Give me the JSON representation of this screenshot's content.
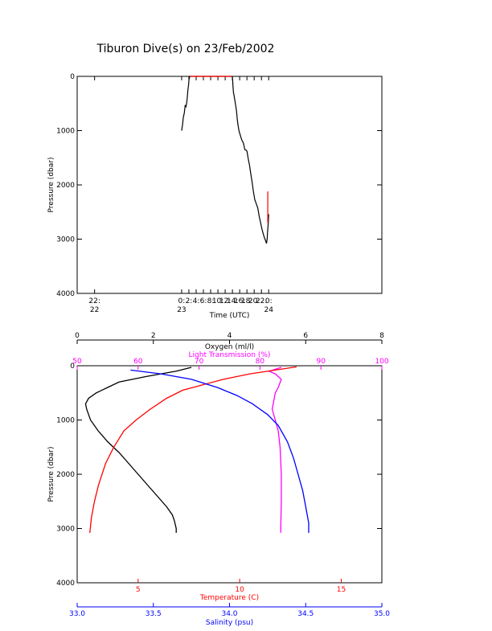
{
  "page": {
    "title": "Tiburon Dive(s) on 23/Feb/2002"
  },
  "chart_data": [
    {
      "type": "line",
      "id": "dive-profile",
      "xlabel": "Time (UTC)",
      "ylabel": "Pressure (dbar)",
      "xlim": [
        21.8,
        25.3
      ],
      "ylim": [
        4000,
        0
      ],
      "x_ticks": [
        {
          "value": 22,
          "line1": "22:",
          "line2": "22"
        },
        {
          "value": 23,
          "line1": "0:",
          "line2": "23"
        },
        {
          "value": 23.0833,
          "line1": "2:",
          "line2": ""
        },
        {
          "value": 23.1667,
          "line1": "4:",
          "line2": ""
        },
        {
          "value": 23.25,
          "line1": "6:",
          "line2": ""
        },
        {
          "value": 23.3333,
          "line1": "8:",
          "line2": ""
        },
        {
          "value": 23.4167,
          "line1": "10:",
          "line2": ""
        },
        {
          "value": 23.5,
          "line1": "12:",
          "line2": ""
        },
        {
          "value": 23.5833,
          "line1": "14:",
          "line2": ""
        },
        {
          "value": 23.6667,
          "line1": "16:",
          "line2": ""
        },
        {
          "value": 23.75,
          "line1": "18:",
          "line2": ""
        },
        {
          "value": 23.8333,
          "line1": "20:",
          "line2": ""
        },
        {
          "value": 23.9167,
          "line1": "22:",
          "line2": ""
        },
        {
          "value": 24,
          "line1": "0:",
          "line2": "24"
        }
      ],
      "y_ticks": [
        0,
        1000,
        2000,
        3000,
        4000
      ],
      "series": [
        {
          "color": "#000000",
          "points": [
            [
              23.0,
              1000
            ],
            [
              23.01,
              900
            ],
            [
              23.02,
              750
            ],
            [
              23.03,
              680
            ],
            [
              23.04,
              540
            ],
            [
              23.05,
              560
            ],
            [
              23.06,
              470
            ],
            [
              23.065,
              380
            ],
            [
              23.072,
              260
            ],
            [
              23.08,
              150
            ],
            [
              23.085,
              60
            ],
            [
              23.09,
              20
            ],
            [
              23.095,
              0
            ],
            [
              23.58,
              0
            ],
            [
              23.585,
              50
            ],
            [
              23.59,
              180
            ],
            [
              23.595,
              300
            ],
            [
              23.6,
              330
            ],
            [
              23.61,
              430
            ],
            [
              23.62,
              530
            ],
            [
              23.63,
              640
            ],
            [
              23.64,
              800
            ],
            [
              23.65,
              920
            ],
            [
              23.66,
              1010
            ],
            [
              23.675,
              1090
            ],
            [
              23.69,
              1170
            ],
            [
              23.71,
              1230
            ],
            [
              23.725,
              1350
            ],
            [
              23.74,
              1360
            ],
            [
              23.75,
              1380
            ],
            [
              23.765,
              1520
            ],
            [
              23.78,
              1640
            ],
            [
              23.795,
              1800
            ],
            [
              23.81,
              1960
            ],
            [
              23.825,
              2130
            ],
            [
              23.84,
              2270
            ],
            [
              23.86,
              2360
            ],
            [
              23.875,
              2430
            ],
            [
              23.89,
              2570
            ],
            [
              23.905,
              2680
            ],
            [
              23.92,
              2800
            ],
            [
              23.935,
              2890
            ],
            [
              23.95,
              2970
            ],
            [
              23.965,
              3030
            ],
            [
              23.975,
              3080
            ],
            [
              23.982,
              3000
            ],
            [
              23.988,
              2850
            ],
            [
              23.995,
              2700
            ],
            [
              24.0,
              2540
            ]
          ]
        },
        {
          "color": "#ff0000",
          "points": [
            [
              23.095,
              0
            ],
            [
              23.58,
              0
            ]
          ]
        },
        {
          "color": "#ff0000",
          "points": [
            [
              23.99,
              2120
            ],
            [
              23.99,
              2700
            ]
          ]
        }
      ]
    },
    {
      "type": "line",
      "id": "cast-profile",
      "ylabel": "Pressure (dbar)",
      "ylim": [
        4000,
        0
      ],
      "y_ticks": [
        0,
        1000,
        2000,
        3000,
        4000
      ],
      "axes": {
        "oxygen": {
          "label": "Oxygen (ml/l)",
          "lim": [
            0,
            8
          ],
          "ticks": [
            0,
            2,
            4,
            6,
            8
          ],
          "color": "#000000",
          "position": "top-outer"
        },
        "transmission": {
          "label": "Light Transmission (%)",
          "lim": [
            50,
            100
          ],
          "ticks": [
            50,
            60,
            70,
            80,
            90,
            100
          ],
          "color": "#ff00ff",
          "position": "top-inner"
        },
        "temperature": {
          "label": "Temperature (C)",
          "lim": [
            2,
            17
          ],
          "ticks": [
            5,
            10,
            15
          ],
          "color": "#ff0000",
          "position": "bottom-inner"
        },
        "salinity": {
          "label": "Salinity (psu)",
          "lim": [
            33.0,
            35.0
          ],
          "ticks": [
            "33.0",
            "33.5",
            "34.0",
            "34.5",
            "35.0"
          ],
          "color": "#0000ff",
          "position": "bottom-outer"
        }
      },
      "series": [
        {
          "name": "Oxygen (ml/l)",
          "axis": "oxygen",
          "color": "#000000",
          "points": [
            [
              3.0,
              30
            ],
            [
              2.6,
              100
            ],
            [
              1.8,
              200
            ],
            [
              1.1,
              300
            ],
            [
              0.8,
              400
            ],
            [
              0.5,
              500
            ],
            [
              0.3,
              600
            ],
            [
              0.22,
              700
            ],
            [
              0.25,
              800
            ],
            [
              0.35,
              1000
            ],
            [
              0.55,
              1200
            ],
            [
              0.8,
              1400
            ],
            [
              1.1,
              1600
            ],
            [
              1.35,
              1800
            ],
            [
              1.6,
              2000
            ],
            [
              1.85,
              2200
            ],
            [
              2.1,
              2400
            ],
            [
              2.35,
              2600
            ],
            [
              2.5,
              2750
            ],
            [
              2.55,
              2850
            ],
            [
              2.6,
              3000
            ],
            [
              2.6,
              3080
            ]
          ]
        },
        {
          "name": "Light Transmission (%)",
          "axis": "transmission",
          "color": "#ff00ff",
          "points": [
            [
              83.5,
              30
            ],
            [
              81.5,
              100
            ],
            [
              82.5,
              150
            ],
            [
              83.5,
              250
            ],
            [
              83.0,
              400
            ],
            [
              82.5,
              500
            ],
            [
              82.0,
              800
            ],
            [
              82.5,
              1000
            ],
            [
              83.0,
              1200
            ],
            [
              83.3,
              1500
            ],
            [
              83.5,
              2000
            ],
            [
              83.5,
              2500
            ],
            [
              83.4,
              3000
            ],
            [
              83.4,
              3080
            ]
          ]
        },
        {
          "name": "Temperature (C)",
          "axis": "temperature",
          "color": "#ff0000",
          "points": [
            [
              12.8,
              20
            ],
            [
              10.5,
              150
            ],
            [
              9.2,
              250
            ],
            [
              8.2,
              350
            ],
            [
              7.2,
              450
            ],
            [
              6.4,
              600
            ],
            [
              5.6,
              800
            ],
            [
              4.9,
              1000
            ],
            [
              4.3,
              1200
            ],
            [
              3.8,
              1500
            ],
            [
              3.4,
              1800
            ],
            [
              3.05,
              2200
            ],
            [
              2.85,
              2500
            ],
            [
              2.7,
              2800
            ],
            [
              2.62,
              3080
            ]
          ]
        },
        {
          "name": "Salinity (psu)",
          "axis": "salinity",
          "color": "#0000ff",
          "points": [
            [
              33.35,
              80
            ],
            [
              33.55,
              150
            ],
            [
              33.75,
              250
            ],
            [
              33.92,
              400
            ],
            [
              34.05,
              550
            ],
            [
              34.15,
              700
            ],
            [
              34.25,
              900
            ],
            [
              34.32,
              1100
            ],
            [
              34.38,
              1400
            ],
            [
              34.42,
              1700
            ],
            [
              34.45,
              2000
            ],
            [
              34.48,
              2300
            ],
            [
              34.5,
              2600
            ],
            [
              34.52,
              2900
            ],
            [
              34.52,
              3080
            ]
          ]
        }
      ]
    }
  ]
}
